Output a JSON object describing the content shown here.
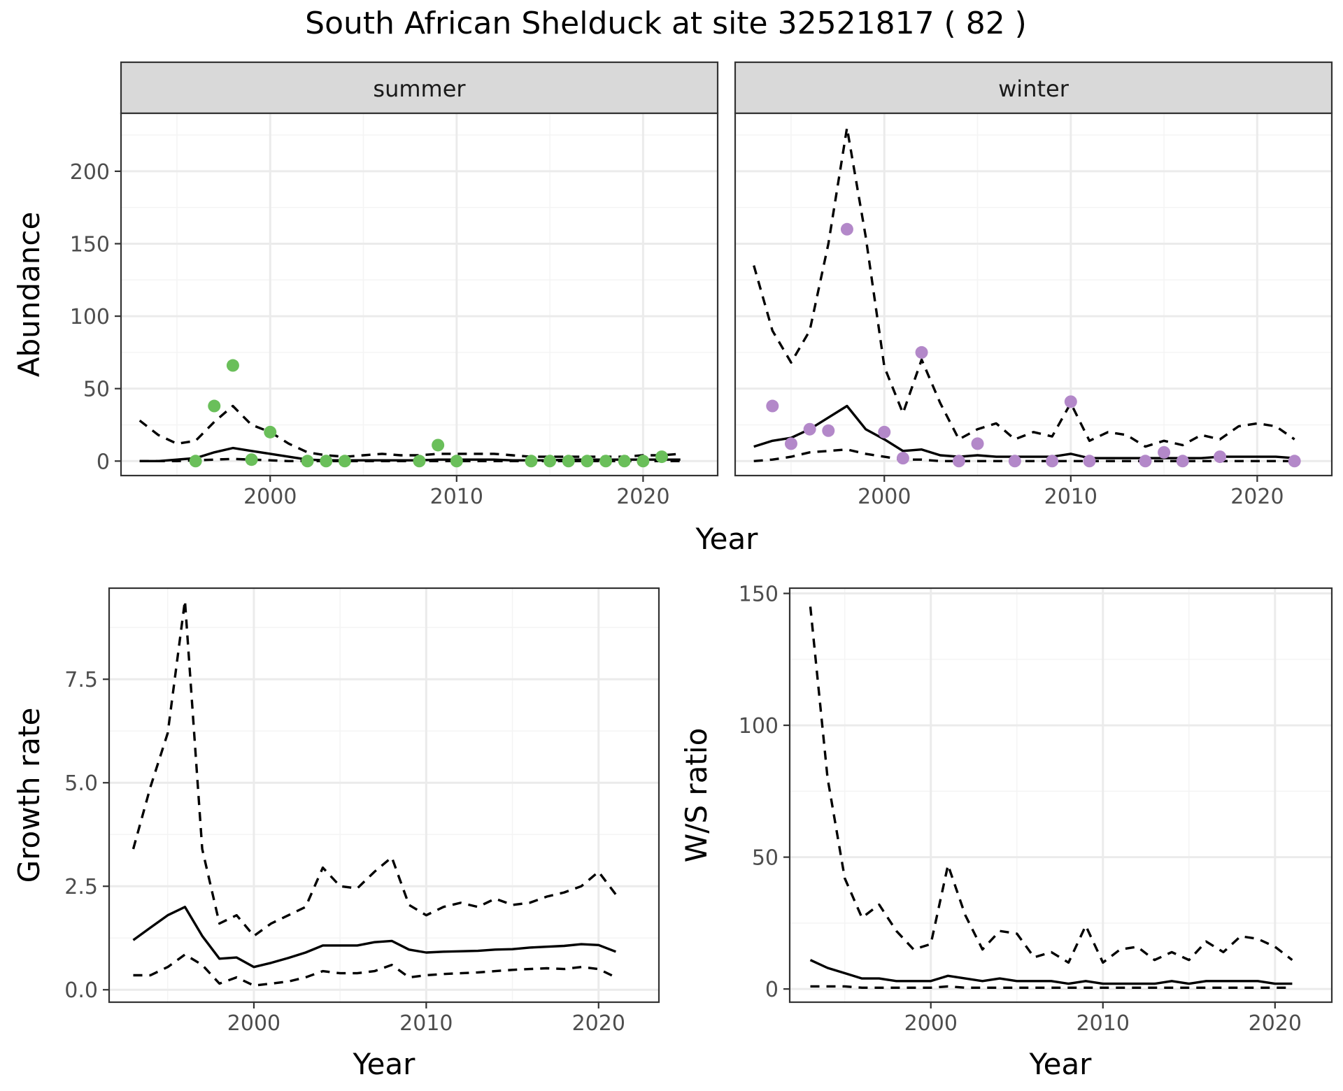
{
  "title": "South African Shelduck at site 32521817 ( 82 )",
  "colors": {
    "summer_points": "#6abf5a",
    "winter_points": "#b388c9",
    "lines": "#000000",
    "strip_fill": "#d9d9d9",
    "grid": "#ebebeb"
  },
  "chart_data": [
    {
      "type": "line",
      "panel": "summer",
      "facet_label": "summer",
      "ylabel": "Abundance",
      "xlabel": "Year",
      "xlim": [
        1992,
        2024
      ],
      "ylim": [
        -10,
        240
      ],
      "x_ticks": [
        2000,
        2010,
        2020
      ],
      "y_ticks": [
        0,
        50,
        100,
        150,
        200
      ],
      "grid": true,
      "points": {
        "x": [
          1996,
          1997,
          1998,
          1999,
          2000,
          2002,
          2003,
          2004,
          2008,
          2009,
          2010,
          2014,
          2015,
          2016,
          2017,
          2018,
          2019,
          2020,
          2021
        ],
        "y": [
          0,
          38,
          66,
          1,
          20,
          0,
          0,
          0,
          0,
          11,
          0,
          0,
          0,
          0,
          0,
          0,
          0,
          0,
          3
        ]
      },
      "series": [
        {
          "style": "solid",
          "x": [
            1993,
            1994,
            1995,
            1996,
            1997,
            1998,
            1999,
            2000,
            2001,
            2002,
            2003,
            2004,
            2005,
            2006,
            2007,
            2008,
            2009,
            2010,
            2011,
            2012,
            2013,
            2014,
            2015,
            2016,
            2017,
            2018,
            2019,
            2020,
            2021,
            2022
          ],
          "values": [
            0,
            0,
            1,
            2,
            6,
            9,
            7,
            5,
            3,
            1,
            0.5,
            0.5,
            0.5,
            0.5,
            0.5,
            0.5,
            1,
            1,
            1,
            1,
            0.5,
            0.5,
            0.5,
            1,
            1,
            1,
            1,
            1,
            1,
            1
          ]
        },
        {
          "style": "dashed",
          "x": [
            1993,
            1994,
            1995,
            1996,
            1997,
            1998,
            1999,
            2000,
            2001,
            2002,
            2003,
            2004,
            2005,
            2006,
            2007,
            2008,
            2009,
            2010,
            2011,
            2012,
            2013,
            2014,
            2015,
            2016,
            2017,
            2018,
            2019,
            2020,
            2021,
            2022
          ],
          "values": [
            28,
            18,
            12,
            14,
            27,
            38,
            25,
            20,
            12,
            6,
            4,
            3,
            4,
            5,
            4,
            4,
            5,
            5,
            5,
            5,
            4,
            3,
            3,
            3,
            3,
            3,
            3,
            4,
            4,
            5
          ]
        },
        {
          "style": "dashed",
          "x": [
            1993,
            1994,
            1995,
            1996,
            1997,
            1998,
            1999,
            2000,
            2001,
            2002,
            2003,
            2004,
            2005,
            2006,
            2007,
            2008,
            2009,
            2010,
            2011,
            2012,
            2013,
            2014,
            2015,
            2016,
            2017,
            2018,
            2019,
            2020,
            2021,
            2022
          ],
          "values": [
            0,
            0,
            0,
            0.5,
            1,
            1.5,
            1,
            0.5,
            0,
            0,
            0,
            0,
            0,
            0,
            0,
            0,
            0,
            0,
            0,
            0,
            0,
            0,
            0,
            0,
            0,
            0,
            0,
            0,
            0,
            0
          ]
        }
      ]
    },
    {
      "type": "line",
      "panel": "winter",
      "facet_label": "winter",
      "ylabel": "",
      "xlabel": "Year",
      "xlim": [
        1992,
        2024
      ],
      "ylim": [
        -10,
        240
      ],
      "x_ticks": [
        2000,
        2010,
        2020
      ],
      "y_ticks": [
        0,
        50,
        100,
        150,
        200
      ],
      "grid": true,
      "points": {
        "x": [
          1994,
          1995,
          1996,
          1997,
          1998,
          2000,
          2001,
          2002,
          2004,
          2005,
          2007,
          2009,
          2010,
          2011,
          2014,
          2015,
          2016,
          2018,
          2022
        ],
        "y": [
          38,
          12,
          22,
          21,
          160,
          20,
          2,
          75,
          0,
          12,
          0,
          0,
          41,
          0,
          0,
          6,
          0,
          3,
          0
        ]
      },
      "series": [
        {
          "style": "solid",
          "x": [
            1993,
            1994,
            1995,
            1996,
            1997,
            1998,
            1999,
            2000,
            2001,
            2002,
            2003,
            2004,
            2005,
            2006,
            2007,
            2008,
            2009,
            2010,
            2011,
            2012,
            2013,
            2014,
            2015,
            2016,
            2017,
            2018,
            2019,
            2020,
            2021,
            2022
          ],
          "values": [
            10,
            14,
            16,
            22,
            30,
            38,
            22,
            15,
            7,
            8,
            4,
            3,
            4,
            3,
            3,
            3,
            3,
            5,
            2,
            2,
            2,
            2,
            2,
            2,
            2,
            3,
            3,
            3,
            3,
            2
          ]
        },
        {
          "style": "dashed",
          "x": [
            1993,
            1994,
            1995,
            1996,
            1997,
            1998,
            1999,
            2000,
            2001,
            2002,
            2003,
            2004,
            2005,
            2006,
            2007,
            2008,
            2009,
            2010,
            2011,
            2012,
            2013,
            2014,
            2015,
            2016,
            2017,
            2018,
            2019,
            2020,
            2021,
            2022
          ],
          "values": [
            135,
            90,
            68,
            90,
            150,
            230,
            155,
            65,
            33,
            70,
            40,
            15,
            22,
            26,
            15,
            20,
            17,
            40,
            14,
            20,
            18,
            10,
            14,
            11,
            18,
            15,
            24,
            26,
            24,
            15
          ]
        },
        {
          "style": "dashed",
          "x": [
            1993,
            1994,
            1995,
            1996,
            1997,
            1998,
            1999,
            2000,
            2001,
            2002,
            2003,
            2004,
            2005,
            2006,
            2007,
            2008,
            2009,
            2010,
            2011,
            2012,
            2013,
            2014,
            2015,
            2016,
            2017,
            2018,
            2019,
            2020,
            2021,
            2022
          ],
          "values": [
            0,
            1,
            3,
            6,
            7,
            8,
            5,
            3,
            1,
            1,
            0,
            0,
            0,
            0,
            0,
            0,
            0,
            0,
            0,
            0,
            0,
            0,
            0,
            0,
            0,
            0,
            0,
            0,
            0,
            0
          ]
        }
      ]
    },
    {
      "type": "line",
      "panel": "growth",
      "ylabel": "Growth rate",
      "xlabel": "Year",
      "xlim": [
        1991.6,
        2023.5
      ],
      "ylim": [
        -0.3,
        9.7
      ],
      "x_ticks": [
        2000,
        2010,
        2020
      ],
      "y_ticks": [
        0.0,
        2.5,
        5.0,
        7.5
      ],
      "y_tick_labels": [
        "0.0",
        "2.5",
        "5.0",
        "7.5"
      ],
      "grid": true,
      "series": [
        {
          "style": "solid",
          "x": [
            1993,
            1994,
            1995,
            1996,
            1997,
            1998,
            1999,
            2000,
            2001,
            2002,
            2003,
            2004,
            2005,
            2006,
            2007,
            2008,
            2009,
            2010,
            2011,
            2012,
            2013,
            2014,
            2015,
            2016,
            2017,
            2018,
            2019,
            2020,
            2021
          ],
          "values": [
            1.2,
            1.5,
            1.8,
            2.0,
            1.3,
            0.75,
            0.78,
            0.55,
            0.65,
            0.77,
            0.9,
            1.07,
            1.07,
            1.07,
            1.15,
            1.18,
            0.97,
            0.9,
            0.92,
            0.93,
            0.94,
            0.97,
            0.98,
            1.02,
            1.04,
            1.06,
            1.1,
            1.08,
            0.92
          ]
        },
        {
          "style": "dashed",
          "x": [
            1993,
            1994,
            1995,
            1996,
            1997,
            1998,
            1999,
            2000,
            2001,
            2002,
            2003,
            2004,
            2005,
            2006,
            2007,
            2008,
            2009,
            2010,
            2011,
            2012,
            2013,
            2014,
            2015,
            2016,
            2017,
            2018,
            2019,
            2020,
            2021
          ],
          "values": [
            3.4,
            4.9,
            6.2,
            9.4,
            3.4,
            1.6,
            1.8,
            1.3,
            1.6,
            1.8,
            2.0,
            2.95,
            2.5,
            2.45,
            2.85,
            3.2,
            2.05,
            1.8,
            2.0,
            2.1,
            2.0,
            2.2,
            2.05,
            2.1,
            2.25,
            2.35,
            2.5,
            2.85,
            2.3
          ]
        },
        {
          "style": "dashed",
          "x": [
            1993,
            1994,
            1995,
            1996,
            1997,
            1998,
            1999,
            2000,
            2001,
            2002,
            2003,
            2004,
            2005,
            2006,
            2007,
            2008,
            2009,
            2010,
            2011,
            2012,
            2013,
            2014,
            2015,
            2016,
            2017,
            2018,
            2019,
            2020,
            2021
          ],
          "values": [
            0.35,
            0.35,
            0.55,
            0.85,
            0.6,
            0.15,
            0.3,
            0.1,
            0.15,
            0.2,
            0.3,
            0.45,
            0.4,
            0.4,
            0.45,
            0.6,
            0.3,
            0.35,
            0.38,
            0.4,
            0.42,
            0.45,
            0.48,
            0.5,
            0.52,
            0.5,
            0.55,
            0.5,
            0.3
          ]
        }
      ]
    },
    {
      "type": "line",
      "panel": "ratio",
      "ylabel": "W/S ratio",
      "xlabel": "Year",
      "xlim": [
        1991.8,
        2023.3
      ],
      "ylim": [
        -5,
        152
      ],
      "x_ticks": [
        2000,
        2010,
        2020
      ],
      "y_ticks": [
        0,
        50,
        100,
        150
      ],
      "grid": true,
      "series": [
        {
          "style": "solid",
          "x": [
            1993,
            1994,
            1995,
            1996,
            1997,
            1998,
            1999,
            2000,
            2001,
            2002,
            2003,
            2004,
            2005,
            2006,
            2007,
            2008,
            2009,
            2010,
            2011,
            2012,
            2013,
            2014,
            2015,
            2016,
            2017,
            2018,
            2019,
            2020,
            2021
          ],
          "values": [
            11,
            8,
            6,
            4,
            4,
            3,
            3,
            3,
            5,
            4,
            3,
            4,
            3,
            3,
            3,
            2,
            3,
            2,
            2,
            2,
            2,
            3,
            2,
            3,
            3,
            3,
            3,
            2,
            2
          ]
        },
        {
          "style": "dashed",
          "x": [
            1993,
            1994,
            1995,
            1996,
            1997,
            1998,
            1999,
            2000,
            2001,
            2002,
            2003,
            2004,
            2005,
            2006,
            2007,
            2008,
            2009,
            2010,
            2011,
            2012,
            2013,
            2014,
            2015,
            2016,
            2017,
            2018,
            2019,
            2020,
            2021
          ],
          "values": [
            145,
            80,
            42,
            27,
            32,
            22,
            15,
            17,
            47,
            28,
            15,
            22,
            21,
            12,
            14,
            10,
            24,
            10,
            15,
            16,
            11,
            14,
            11,
            18,
            14,
            20,
            19,
            16,
            11
          ]
        },
        {
          "style": "dashed",
          "x": [
            1993,
            1994,
            1995,
            1996,
            1997,
            1998,
            1999,
            2000,
            2001,
            2002,
            2003,
            2004,
            2005,
            2006,
            2007,
            2008,
            2009,
            2010,
            2011,
            2012,
            2013,
            2014,
            2015,
            2016,
            2017,
            2018,
            2019,
            2020,
            2021
          ],
          "values": [
            1,
            1,
            1,
            0.5,
            0.5,
            0.5,
            0.5,
            0.5,
            1,
            0.5,
            0.5,
            0.5,
            0.5,
            0.5,
            0.5,
            0.5,
            0.5,
            0.5,
            0.5,
            0.5,
            0.5,
            0.5,
            0.5,
            0.5,
            0.5,
            0.5,
            0.5,
            0.5,
            0.5
          ]
        }
      ]
    }
  ]
}
